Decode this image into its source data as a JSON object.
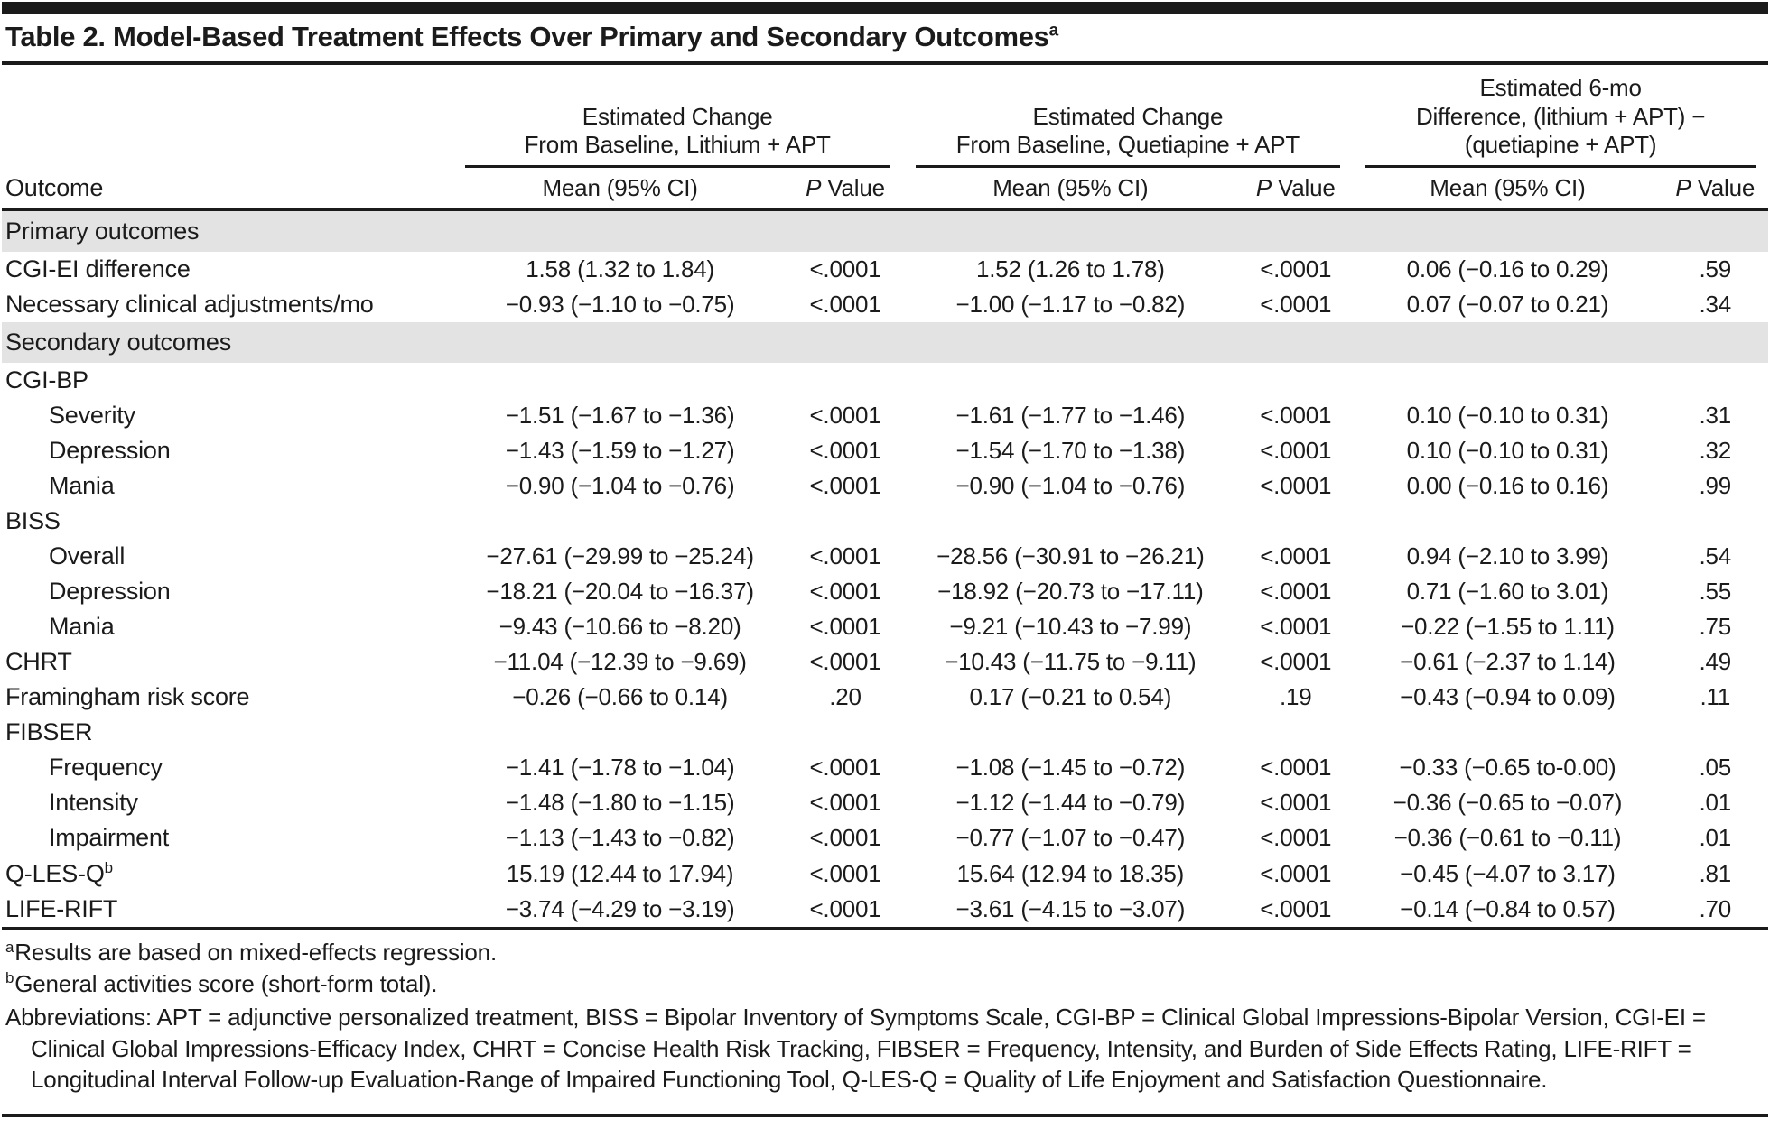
{
  "colors": {
    "ink": "#1b1b1b",
    "section_band": "#e3e3e3",
    "paper": "#ffffff"
  },
  "title": {
    "text": "Table 2. Model-Based Treatment Effects Over Primary and Secondary Outcomes",
    "superscript": "a"
  },
  "table": {
    "outcome_header": "Outcome",
    "groups": [
      {
        "title": "Estimated Change\nFrom Baseline, Lithium + APT"
      },
      {
        "title": "Estimated Change\nFrom Baseline, Quetiapine + APT"
      },
      {
        "title": "Estimated 6-mo\nDifference, (lithium + APT) −\n(quetiapine + APT)"
      }
    ],
    "mean_header": "Mean (95% CI)",
    "p_header_italic": "P",
    "p_header_rest": " Value",
    "rows": [
      {
        "type": "section",
        "label": "Primary outcomes"
      },
      {
        "type": "data",
        "label": "CGI-EI difference",
        "indent": 0,
        "m1": "1.58 (1.32 to 1.84)",
        "p1": "<.0001",
        "m2": "1.52 (1.26 to 1.78)",
        "p2": "<.0001",
        "m3": "0.06 (−0.16 to 0.29)",
        "p3": ".59"
      },
      {
        "type": "data",
        "label": "Necessary clinical adjustments/mo",
        "indent": 0,
        "m1": "−0.93 (−1.10 to −0.75)",
        "p1": "<.0001",
        "m2": "−1.00 (−1.17 to −0.82)",
        "p2": "<.0001",
        "m3": "0.07 (−0.07 to 0.21)",
        "p3": ".34"
      },
      {
        "type": "section",
        "label": "Secondary outcomes"
      },
      {
        "type": "data",
        "label": "CGI-BP",
        "indent": 0,
        "m1": "",
        "p1": "",
        "m2": "",
        "p2": "",
        "m3": "",
        "p3": ""
      },
      {
        "type": "data",
        "label": "Severity",
        "indent": 1,
        "m1": "−1.51 (−1.67 to −1.36)",
        "p1": "<.0001",
        "m2": "−1.61 (−1.77 to −1.46)",
        "p2": "<.0001",
        "m3": "0.10 (−0.10 to 0.31)",
        "p3": ".31"
      },
      {
        "type": "data",
        "label": "Depression",
        "indent": 1,
        "m1": "−1.43 (−1.59 to −1.27)",
        "p1": "<.0001",
        "m2": "−1.54 (−1.70 to −1.38)",
        "p2": "<.0001",
        "m3": "0.10 (−0.10 to 0.31)",
        "p3": ".32"
      },
      {
        "type": "data",
        "label": "Mania",
        "indent": 1,
        "m1": "−0.90 (−1.04 to −0.76)",
        "p1": "<.0001",
        "m2": "−0.90 (−1.04 to −0.76)",
        "p2": "<.0001",
        "m3": "0.00 (−0.16 to 0.16)",
        "p3": ".99"
      },
      {
        "type": "data",
        "label": "BISS",
        "indent": 0,
        "m1": "",
        "p1": "",
        "m2": "",
        "p2": "",
        "m3": "",
        "p3": ""
      },
      {
        "type": "data",
        "label": "Overall",
        "indent": 1,
        "m1": "−27.61 (−29.99 to −25.24)",
        "p1": "<.0001",
        "m2": "−28.56 (−30.91 to −26.21)",
        "p2": "<.0001",
        "m3": "0.94 (−2.10 to 3.99)",
        "p3": ".54"
      },
      {
        "type": "data",
        "label": "Depression",
        "indent": 1,
        "m1": "−18.21 (−20.04 to −16.37)",
        "p1": "<.0001",
        "m2": "−18.92 (−20.73 to −17.11)",
        "p2": "<.0001",
        "m3": "0.71 (−1.60 to 3.01)",
        "p3": ".55"
      },
      {
        "type": "data",
        "label": "Mania",
        "indent": 1,
        "m1": "−9.43 (−10.66 to −8.20)",
        "p1": "<.0001",
        "m2": "−9.21 (−10.43 to −7.99)",
        "p2": "<.0001",
        "m3": "−0.22 (−1.55 to 1.11)",
        "p3": ".75"
      },
      {
        "type": "data",
        "label": "CHRT",
        "indent": 0,
        "m1": "−11.04 (−12.39 to −9.69)",
        "p1": "<.0001",
        "m2": "−10.43 (−11.75 to −9.11)",
        "p2": "<.0001",
        "m3": "−0.61 (−2.37 to 1.14)",
        "p3": ".49"
      },
      {
        "type": "data",
        "label": "Framingham risk score",
        "indent": 0,
        "m1": "−0.26 (−0.66 to 0.14)",
        "p1": ".20",
        "m2": "0.17 (−0.21 to 0.54)",
        "p2": ".19",
        "m3": "−0.43 (−0.94 to 0.09)",
        "p3": ".11"
      },
      {
        "type": "data",
        "label": "FIBSER",
        "indent": 0,
        "m1": "",
        "p1": "",
        "m2": "",
        "p2": "",
        "m3": "",
        "p3": ""
      },
      {
        "type": "data",
        "label": "Frequency",
        "indent": 1,
        "m1": "−1.41 (−1.78 to −1.04)",
        "p1": "<.0001",
        "m2": "−1.08 (−1.45 to −0.72)",
        "p2": "<.0001",
        "m3": "−0.33 (−0.65 to-0.00)",
        "p3": ".05"
      },
      {
        "type": "data",
        "label": "Intensity",
        "indent": 1,
        "m1": "−1.48 (−1.80 to −1.15)",
        "p1": "<.0001",
        "m2": "−1.12 (−1.44 to −0.79)",
        "p2": "<.0001",
        "m3": "−0.36 (−0.65 to −0.07)",
        "p3": ".01"
      },
      {
        "type": "data",
        "label": "Impairment",
        "indent": 1,
        "m1": "−1.13 (−1.43 to −0.82)",
        "p1": "<.0001",
        "m2": "−0.77 (−1.07 to −0.47)",
        "p2": "<.0001",
        "m3": "−0.36 (−0.61 to −0.11)",
        "p3": ".01"
      },
      {
        "type": "data",
        "label": "Q-LES-Q",
        "sup": "b",
        "indent": 0,
        "m1": "15.19 (12.44 to 17.94)",
        "p1": "<.0001",
        "m2": "15.64 (12.94 to 18.35)",
        "p2": "<.0001",
        "m3": "−0.45 (−4.07 to 3.17)",
        "p3": ".81"
      },
      {
        "type": "data",
        "label": "LIFE-RIFT",
        "indent": 0,
        "m1": "−3.74 (−4.29 to −3.19)",
        "p1": "<.0001",
        "m2": "−3.61 (−4.15 to −3.07)",
        "p2": "<.0001",
        "m3": "−0.14 (−0.84 to 0.57)",
        "p3": ".70"
      }
    ]
  },
  "footnotes": {
    "a_sup": "a",
    "a_text": "Results are based on mixed-effects regression.",
    "b_sup": "b",
    "b_text": "General activities score (short-form total).",
    "abbreviations": "Abbreviations: APT = adjunctive personalized treatment, BISS = Bipolar Inventory of Symptoms Scale, CGI-BP = Clinical Global Impressions-Bipolar Version, CGI-EI = Clinical Global Impressions-Efficacy Index, CHRT = Concise Health Risk Tracking, FIBSER = Frequency, Intensity, and Burden of Side Effects Rating, LIFE-RIFT = Longitudinal Interval Follow-up Evaluation-Range of Impaired Functioning Tool,  Q-LES-Q = Quality of Life Enjoyment and Satisfaction Questionnaire."
  }
}
